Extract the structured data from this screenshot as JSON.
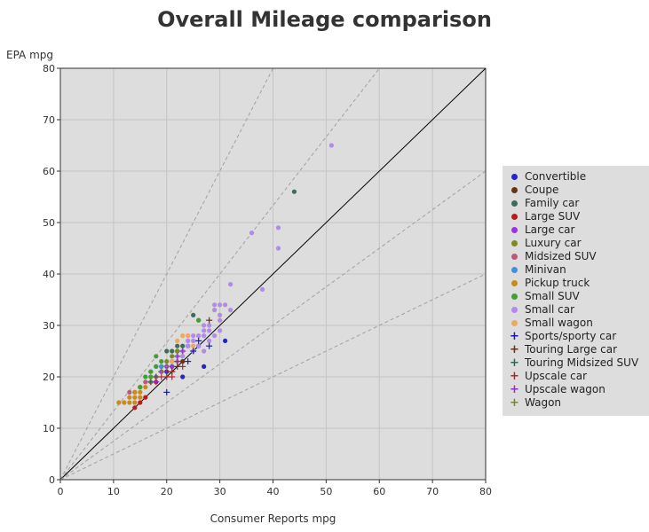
{
  "chart_data": {
    "type": "scatter",
    "title": "Overall Mileage comparison",
    "xlabel": "Consumer Reports mpg",
    "ylabel": "EPA mpg",
    "xlim": [
      0,
      80
    ],
    "ylim": [
      0,
      80
    ],
    "xticks": [
      0,
      10,
      20,
      30,
      40,
      50,
      60,
      70,
      80
    ],
    "yticks": [
      0,
      10,
      20,
      30,
      40,
      50,
      60,
      70,
      80
    ],
    "grid": true,
    "legend_position": "right",
    "reference_lines": [
      {
        "slope": 2,
        "style": "dashed"
      },
      {
        "slope": 1.333,
        "style": "dashed"
      },
      {
        "slope": 1,
        "style": "solid"
      },
      {
        "slope": 0.75,
        "style": "dashed"
      },
      {
        "slope": 0.5,
        "style": "dashed"
      }
    ],
    "series": [
      {
        "name": "Convertible",
        "marker": "dot",
        "color": "#2323c8",
        "points": [
          [
            23,
            20
          ],
          [
            27,
            22
          ],
          [
            31,
            27
          ],
          [
            26,
            26
          ],
          [
            20,
            21
          ]
        ]
      },
      {
        "name": "Coupe",
        "marker": "dot",
        "color": "#6b3210",
        "points": [
          [
            22,
            25
          ],
          [
            23,
            23
          ],
          [
            21,
            22
          ],
          [
            24,
            26
          ]
        ]
      },
      {
        "name": "Family car",
        "marker": "dot",
        "color": "#3e6b5a",
        "points": [
          [
            44,
            56
          ],
          [
            21,
            25
          ],
          [
            22,
            26
          ],
          [
            23,
            26
          ],
          [
            25,
            32
          ],
          [
            20,
            25
          ],
          [
            26,
            31
          ],
          [
            21,
            23
          ]
        ]
      },
      {
        "name": "Large SUV",
        "marker": "dot",
        "color": "#c01818",
        "points": [
          [
            14,
            14
          ],
          [
            16,
            16
          ],
          [
            15,
            15
          ],
          [
            18,
            19
          ]
        ]
      },
      {
        "name": "Large car",
        "marker": "dot",
        "color": "#9932e0",
        "points": [
          [
            20,
            22
          ],
          [
            21,
            22
          ],
          [
            19,
            21
          ]
        ]
      },
      {
        "name": "Luxury car",
        "marker": "dot",
        "color": "#7e8a1c",
        "points": [
          [
            21,
            24
          ],
          [
            20,
            23
          ],
          [
            22,
            25
          ],
          [
            19,
            22
          ]
        ]
      },
      {
        "name": "Midsized SUV",
        "marker": "dot",
        "color": "#b85a78",
        "points": [
          [
            13,
            17
          ],
          [
            16,
            19
          ],
          [
            15,
            18
          ],
          [
            17,
            19
          ],
          [
            14,
            17
          ],
          [
            18,
            20
          ]
        ]
      },
      {
        "name": "Minivan",
        "marker": "dot",
        "color": "#3894e0",
        "points": [
          [
            18,
            22
          ],
          [
            19,
            22
          ],
          [
            17,
            21
          ]
        ]
      },
      {
        "name": "Pickup truck",
        "marker": "dot",
        "color": "#c88a1c",
        "points": [
          [
            11,
            15
          ],
          [
            12,
            15
          ],
          [
            13,
            15
          ],
          [
            13,
            16
          ],
          [
            14,
            16
          ],
          [
            14,
            17
          ],
          [
            15,
            17
          ],
          [
            15,
            16
          ],
          [
            16,
            18
          ],
          [
            14,
            15
          ]
        ]
      },
      {
        "name": "Small SUV",
        "marker": "dot",
        "color": "#42a030",
        "points": [
          [
            18,
            24
          ],
          [
            17,
            21
          ],
          [
            18,
            22
          ],
          [
            16,
            20
          ],
          [
            15,
            18
          ],
          [
            19,
            23
          ],
          [
            17,
            20
          ],
          [
            26,
            31
          ]
        ]
      },
      {
        "name": "Small car",
        "marker": "dot",
        "color": "#b28ae8",
        "points": [
          [
            51,
            65
          ],
          [
            36,
            48
          ],
          [
            41,
            49
          ],
          [
            41,
            45
          ],
          [
            32,
            38
          ],
          [
            38,
            37
          ],
          [
            30,
            34
          ],
          [
            31,
            34
          ],
          [
            29,
            34
          ],
          [
            28,
            30
          ],
          [
            28,
            29
          ],
          [
            27,
            30
          ],
          [
            27,
            29
          ],
          [
            26,
            28
          ],
          [
            25,
            28
          ],
          [
            26,
            26
          ],
          [
            24,
            27
          ],
          [
            24,
            26
          ],
          [
            25,
            27
          ],
          [
            23,
            25
          ],
          [
            23,
            24
          ],
          [
            22,
            24
          ],
          [
            22,
            23
          ],
          [
            25,
            25
          ],
          [
            29,
            33
          ],
          [
            30,
            31
          ],
          [
            30,
            32
          ],
          [
            32,
            33
          ],
          [
            27,
            25
          ],
          [
            30,
            29
          ],
          [
            29,
            28
          ],
          [
            27,
            28
          ],
          [
            24,
            28
          ],
          [
            28,
            27
          ]
        ]
      },
      {
        "name": "Small wagon",
        "marker": "dot",
        "color": "#f0a860",
        "points": [
          [
            23,
            28
          ],
          [
            24,
            28
          ],
          [
            22,
            27
          ],
          [
            25,
            26
          ],
          [
            21,
            23
          ]
        ]
      },
      {
        "name": "Sports/sporty car",
        "marker": "plus",
        "color": "#1a1ab0",
        "points": [
          [
            20,
            17
          ],
          [
            28,
            26
          ],
          [
            24,
            23
          ],
          [
            25,
            25
          ],
          [
            26,
            27
          ]
        ]
      },
      {
        "name": "Touring Large car",
        "marker": "plus",
        "color": "#7a2a10",
        "points": [
          [
            28,
            31
          ],
          [
            22,
            22
          ],
          [
            21,
            21
          ]
        ]
      },
      {
        "name": "Touring Midsized SUV",
        "marker": "plus",
        "color": "#2e6a4e",
        "points": [
          [
            18,
            20
          ],
          [
            19,
            21
          ],
          [
            17,
            19
          ]
        ]
      },
      {
        "name": "Upscale car",
        "marker": "plus",
        "color": "#c02020",
        "points": [
          [
            19,
            20
          ],
          [
            20,
            20
          ],
          [
            21,
            21
          ],
          [
            22,
            23
          ],
          [
            23,
            22
          ],
          [
            20,
            21
          ],
          [
            21,
            20
          ]
        ]
      },
      {
        "name": "Upscale wagon",
        "marker": "plus",
        "color": "#9a2ad0",
        "points": [
          [
            22,
            24
          ],
          [
            23,
            25
          ],
          [
            18,
            19
          ],
          [
            20,
            22
          ]
        ]
      },
      {
        "name": "Wagon",
        "marker": "plus",
        "color": "#7e8a10",
        "points": [
          [
            20,
            22
          ],
          [
            19,
            21
          ]
        ]
      }
    ]
  }
}
